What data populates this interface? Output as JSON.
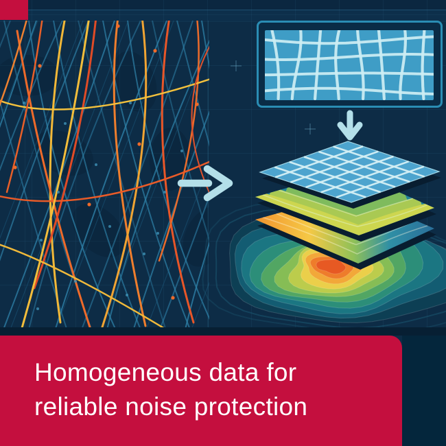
{
  "caption": {
    "line1": "Homogeneous data for",
    "line2": "reliable noise protection"
  },
  "colors": {
    "canvas_navy": "#0d2c46",
    "band_dark": "#071f33",
    "bottom_right_navy": "#04263c",
    "accent_crimson": "#c40f3e",
    "caption_text": "#ffffff",
    "arrow_cyan": "#b3dfe9",
    "frame_teal": "#2a8db4",
    "frame_fill": "#0a2c46",
    "panel_blue": "#3f9dc6",
    "grid_pale": "#cdeef3",
    "plate_blue": "#4da4ce",
    "plate_grid": "#d5f0f5",
    "plate_shadow": "#081d30",
    "street_blue": "#2e81a8",
    "street_blue_dark": "#1c5c80",
    "grid_faint": "rgba(74,150,190,0.08)"
  },
  "road_palette": [
    "#f2b838",
    "#ee6a2a",
    "#e04b26",
    "#ef7e2d",
    "#f0a433",
    "#e85628",
    "#ea6b2b",
    "#f3c13d",
    "#ea5b28",
    "#ee8130",
    "#e0502a",
    "#f0b93a",
    "#e85f28",
    "#f3bd3b"
  ],
  "heat_palette_outer_to_inner": [
    "#0d3f54",
    "#135c72",
    "#1b7682",
    "#2c8e79",
    "#52a663",
    "#86bd55",
    "#bccc4c",
    "#ebcf4a",
    "#f2a839",
    "#ee7c2b",
    "#e75923"
  ],
  "terrain_band_palette": [
    "#1e7f95",
    "#2d9187",
    "#52a96d",
    "#7fbb5d",
    "#a9c953",
    "#cdd64f"
  ],
  "rainbow_gradient_stops": [
    "#f2932f",
    "#f5c845",
    "#8fc058",
    "#2f8fa5",
    "#2a6f9a"
  ]
}
